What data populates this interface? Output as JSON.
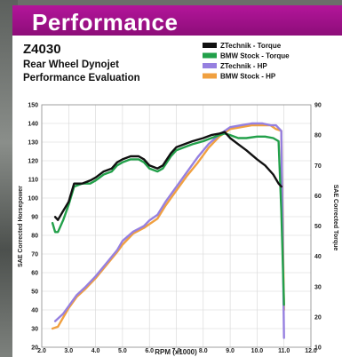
{
  "header": {
    "title": "Performance"
  },
  "chart_data": {
    "type": "line",
    "title": [
      "Z4030",
      "Rear Wheel Dynojet",
      "Performance Evaluation"
    ],
    "xlabel": "RPM (x1000)",
    "ylabel_left": "SAE Corrected Horsepower",
    "ylabel_right": "SAE Corrected Torque",
    "xlim": [
      2.0,
      12.0
    ],
    "ylim_left": [
      20,
      150
    ],
    "ylim_right": [
      10,
      90
    ],
    "x_ticks": [
      "2.0",
      "3.0",
      "4.0",
      "5.0",
      "6.0",
      "7.0",
      "8.0",
      "9.0",
      "10.0",
      "11.0",
      "12.0"
    ],
    "y_ticks_left": [
      "20",
      "30",
      "40",
      "50",
      "60",
      "70",
      "80",
      "90",
      "100",
      "110",
      "120",
      "130",
      "140",
      "150"
    ],
    "y_ticks_right": [
      "10",
      "20",
      "30",
      "40",
      "50",
      "60",
      "70",
      "80",
      "90"
    ],
    "grid": true,
    "legend_position": "top-right",
    "series": [
      {
        "name": "ZTechnik - Torque",
        "color": "#111111",
        "axis": "right",
        "x": [
          2.5,
          2.6,
          2.8,
          3.0,
          3.2,
          3.5,
          3.8,
          4.0,
          4.3,
          4.6,
          4.8,
          5.0,
          5.3,
          5.6,
          5.8,
          6.0,
          6.3,
          6.5,
          6.8,
          7.0,
          7.3,
          7.6,
          8.0,
          8.3,
          8.6,
          8.8,
          9.0,
          9.3,
          9.6,
          10.0,
          10.3,
          10.6,
          10.8,
          10.9
        ],
        "y": [
          53,
          52,
          55,
          58,
          64,
          64,
          65,
          66,
          68,
          69,
          71,
          72,
          73,
          73,
          72,
          70,
          69,
          70,
          74,
          76,
          77,
          78,
          79,
          80,
          80.5,
          81,
          79,
          77,
          75,
          72,
          70,
          67,
          64,
          63
        ]
      },
      {
        "name": "BMW Stock - Torque",
        "color": "#22a04a",
        "axis": "right",
        "x": [
          2.4,
          2.5,
          2.6,
          2.8,
          3.0,
          3.2,
          3.5,
          3.8,
          4.0,
          4.3,
          4.6,
          4.8,
          5.0,
          5.3,
          5.6,
          5.8,
          6.0,
          6.3,
          6.5,
          6.8,
          7.0,
          7.3,
          7.6,
          8.0,
          8.3,
          8.6,
          8.8,
          9.0,
          9.3,
          9.6,
          10.0,
          10.3,
          10.6,
          10.8,
          10.9,
          11.0
        ],
        "y": [
          51,
          48,
          48,
          52,
          57,
          63,
          64,
          64,
          65,
          67,
          68,
          70,
          71,
          72,
          72,
          71,
          69,
          68,
          69,
          73,
          75,
          76,
          77,
          78,
          79,
          80,
          80.5,
          80,
          79,
          79,
          79.5,
          79.5,
          79,
          78,
          55,
          24
        ]
      },
      {
        "name": "ZTechnik - HP",
        "color": "#9680e0",
        "axis": "left",
        "x": [
          2.5,
          2.8,
          3.0,
          3.3,
          3.6,
          4.0,
          4.4,
          4.8,
          5.0,
          5.4,
          5.8,
          6.0,
          6.3,
          6.6,
          7.0,
          7.4,
          7.8,
          8.2,
          8.6,
          9.0,
          9.4,
          9.8,
          10.2,
          10.5,
          10.7,
          10.9,
          11.0
        ],
        "y": [
          34,
          38,
          42,
          48,
          52,
          58,
          65,
          72,
          77,
          82,
          85,
          88,
          91,
          98,
          106,
          114,
          122,
          129,
          134,
          138,
          139,
          140,
          140,
          139,
          139,
          136,
          25
        ]
      },
      {
        "name": "BMW Stock - HP",
        "color": "#f0a040",
        "axis": "left",
        "x": [
          2.4,
          2.6,
          2.8,
          3.0,
          3.3,
          3.6,
          4.0,
          4.4,
          4.8,
          5.0,
          5.4,
          5.8,
          6.0,
          6.3,
          6.6,
          7.0,
          7.4,
          7.8,
          8.2,
          8.6,
          9.0,
          9.4,
          9.8,
          10.2,
          10.5,
          10.7,
          10.9,
          11.0
        ],
        "y": [
          30,
          31,
          36,
          41,
          47,
          51,
          57,
          64,
          71,
          75,
          81,
          84,
          86,
          89,
          96,
          104,
          112,
          119,
          127,
          133,
          137,
          138,
          139,
          139,
          139,
          137,
          136,
          40
        ]
      }
    ]
  }
}
